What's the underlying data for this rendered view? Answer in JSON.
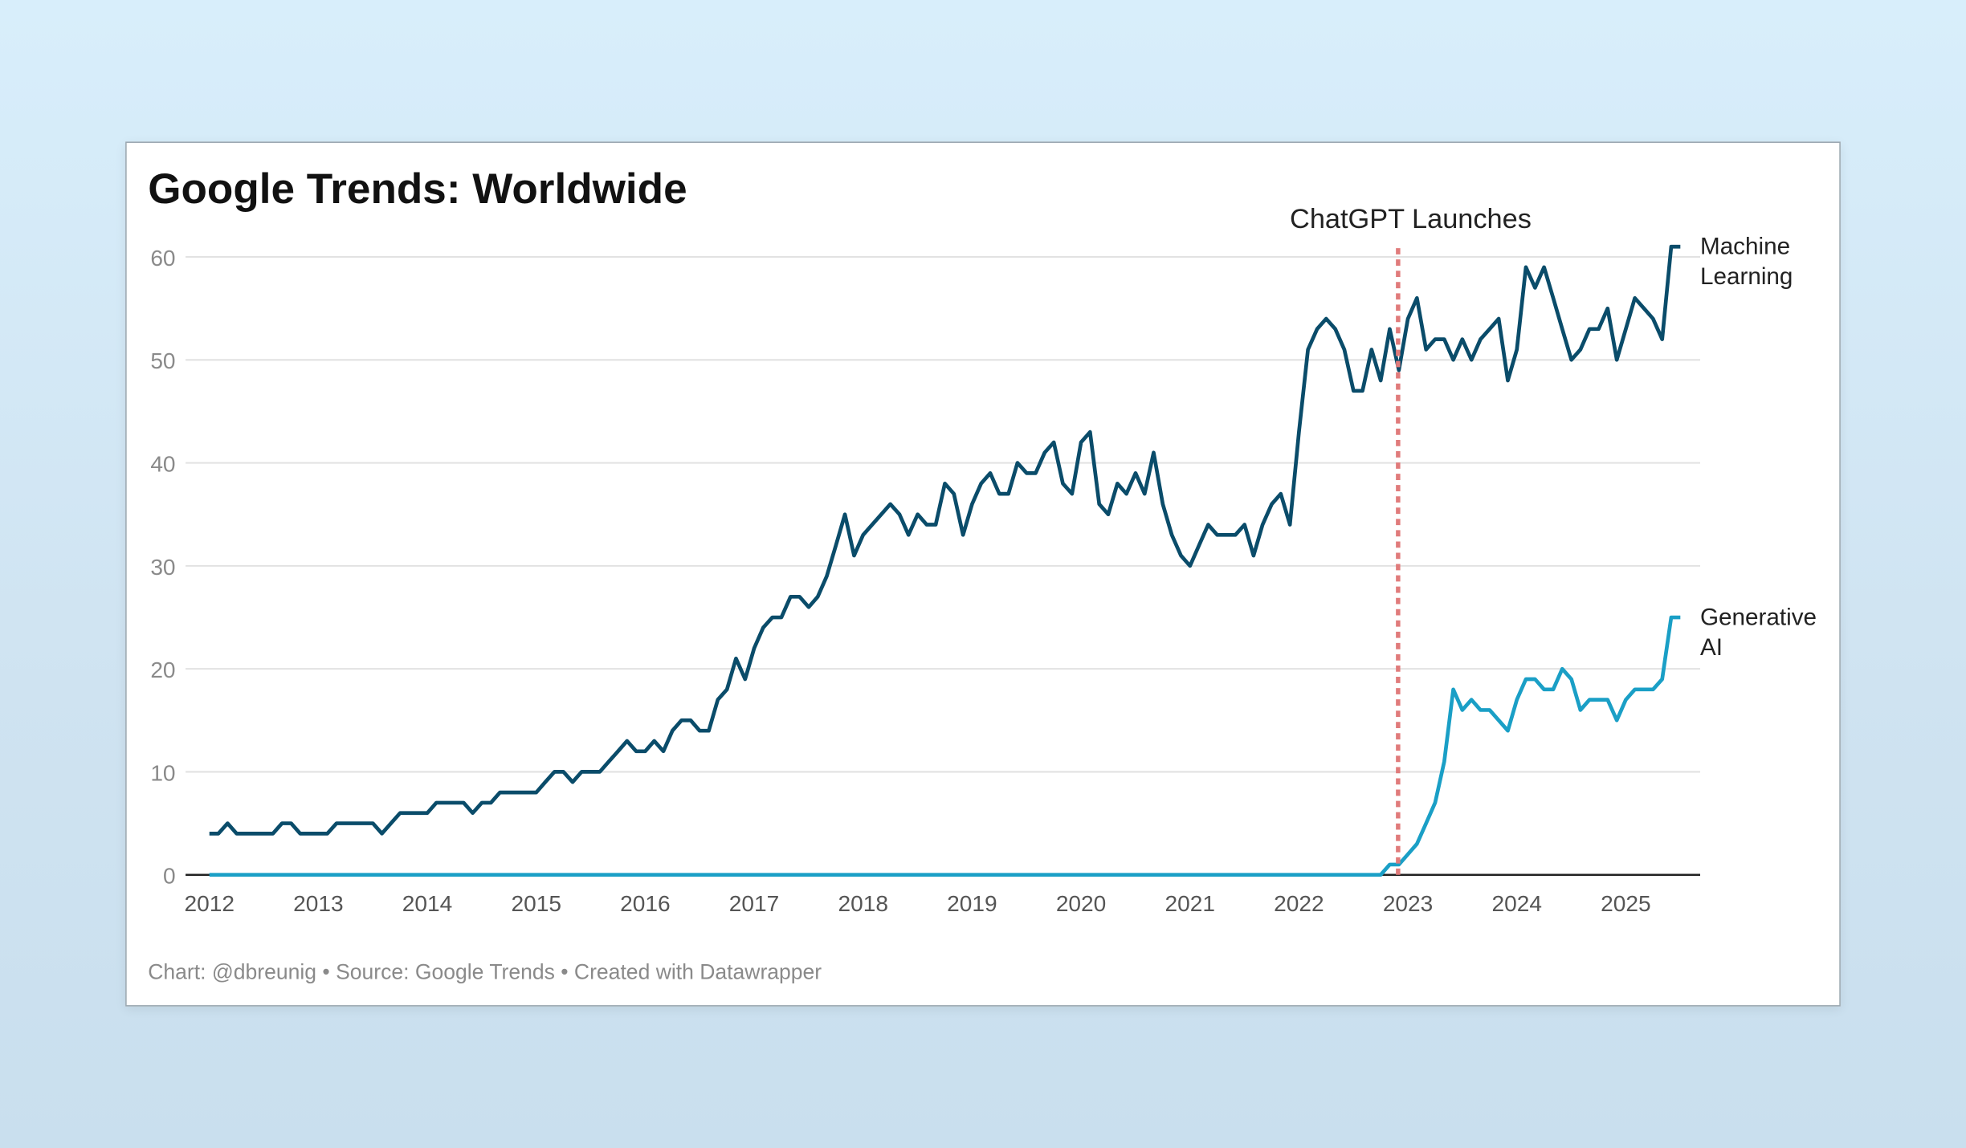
{
  "chart_data": {
    "type": "line",
    "title": "Google Trends: Worldwide",
    "footer": "Chart: @dbreunig • Source: Google Trends • Created with Datawrapper",
    "xlabel": "",
    "ylabel": "",
    "x_start": "2012-01",
    "x_step": "month",
    "xlim": [
      2012,
      2025.6
    ],
    "ylim": [
      0,
      60
    ],
    "yticks": [
      "0",
      "10",
      "20",
      "30",
      "40",
      "50",
      "60"
    ],
    "xticks": [
      "2012",
      "2013",
      "2014",
      "2015",
      "2016",
      "2017",
      "2018",
      "2019",
      "2020",
      "2021",
      "2022",
      "2023",
      "2024",
      "2025"
    ],
    "grid": true,
    "annotation": {
      "label": "ChatGPT Launches",
      "x": 2022.91,
      "color": "#e07b7b"
    },
    "series": [
      {
        "name": "Machine Learning",
        "label_lines": [
          "Machine",
          "Learning"
        ],
        "color": "#0a4c6a",
        "values": [
          4,
          4,
          5,
          4,
          4,
          4,
          4,
          4,
          5,
          5,
          4,
          4,
          4,
          4,
          5,
          5,
          5,
          5,
          5,
          4,
          5,
          6,
          6,
          6,
          6,
          7,
          7,
          7,
          7,
          6,
          7,
          7,
          8,
          8,
          8,
          8,
          8,
          9,
          10,
          10,
          9,
          10,
          10,
          10,
          11,
          12,
          13,
          12,
          12,
          13,
          12,
          14,
          15,
          15,
          14,
          14,
          17,
          18,
          21,
          19,
          22,
          24,
          25,
          25,
          27,
          27,
          26,
          27,
          29,
          32,
          35,
          31,
          33,
          34,
          35,
          36,
          35,
          33,
          35,
          34,
          34,
          38,
          37,
          33,
          36,
          38,
          39,
          37,
          37,
          40,
          39,
          39,
          41,
          42,
          38,
          37,
          42,
          43,
          36,
          35,
          38,
          37,
          39,
          37,
          41,
          36,
          33,
          31,
          30,
          32,
          34,
          33,
          33,
          33,
          34,
          31,
          34,
          36,
          37,
          34,
          43,
          51,
          53,
          54,
          53,
          51,
          47,
          47,
          51,
          48,
          53,
          49,
          54,
          56,
          51,
          52,
          52,
          50,
          52,
          50,
          52,
          53,
          54,
          48,
          51,
          59,
          57,
          59,
          56,
          53,
          50,
          51,
          53,
          53,
          55,
          50,
          53,
          56,
          55,
          54,
          52,
          61,
          61
        ]
      },
      {
        "name": "Generative AI",
        "label_lines": [
          "Generative",
          "AI"
        ],
        "color": "#1a9fc6",
        "values": [
          0,
          0,
          0,
          0,
          0,
          0,
          0,
          0,
          0,
          0,
          0,
          0,
          0,
          0,
          0,
          0,
          0,
          0,
          0,
          0,
          0,
          0,
          0,
          0,
          0,
          0,
          0,
          0,
          0,
          0,
          0,
          0,
          0,
          0,
          0,
          0,
          0,
          0,
          0,
          0,
          0,
          0,
          0,
          0,
          0,
          0,
          0,
          0,
          0,
          0,
          0,
          0,
          0,
          0,
          0,
          0,
          0,
          0,
          0,
          0,
          0,
          0,
          0,
          0,
          0,
          0,
          0,
          0,
          0,
          0,
          0,
          0,
          0,
          0,
          0,
          0,
          0,
          0,
          0,
          0,
          0,
          0,
          0,
          0,
          0,
          0,
          0,
          0,
          0,
          0,
          0,
          0,
          0,
          0,
          0,
          0,
          0,
          0,
          0,
          0,
          0,
          0,
          0,
          0,
          0,
          0,
          0,
          0,
          0,
          0,
          0,
          0,
          0,
          0,
          0,
          0,
          0,
          0,
          0,
          0,
          0,
          0,
          0,
          0,
          0,
          0,
          0,
          0,
          0,
          0,
          1,
          1,
          2,
          3,
          5,
          7,
          11,
          18,
          16,
          17,
          16,
          16,
          15,
          14,
          17,
          19,
          19,
          18,
          18,
          20,
          19,
          16,
          17,
          17,
          17,
          15,
          17,
          18,
          18,
          18,
          19,
          25,
          25
        ]
      }
    ]
  }
}
